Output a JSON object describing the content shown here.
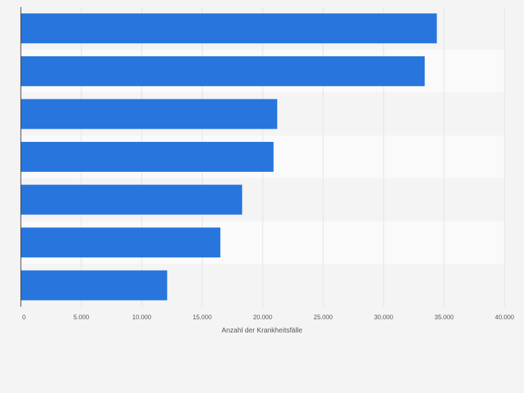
{
  "chart_data": {
    "type": "bar",
    "orientation": "horizontal",
    "categories": [
      "",
      "",
      "",
      "",
      "",
      "",
      ""
    ],
    "values": [
      34400,
      33400,
      21200,
      20900,
      18300,
      16500,
      12100
    ],
    "xlabel": "Anzahl der Krankheitsfälle",
    "xlim": [
      0,
      40000
    ],
    "xticks": [
      0,
      5000,
      10000,
      15000,
      20000,
      25000,
      30000,
      35000,
      40000
    ],
    "xtick_labels": [
      "0",
      "5.000",
      "10.000",
      "15.000",
      "20.000",
      "25.000",
      "30.000",
      "35.000",
      "40.000"
    ],
    "grid": true,
    "bar_color": "#2876dd"
  }
}
